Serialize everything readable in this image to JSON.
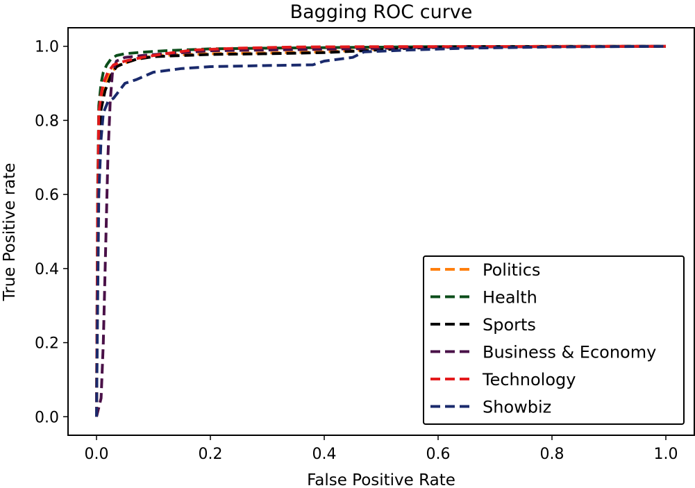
{
  "chart_data": {
    "type": "line",
    "title": "Bagging ROC curve",
    "xlabel": "False Positive Rate",
    "ylabel": "True Positive rate",
    "xlim": [
      -0.05,
      1.05
    ],
    "ylim": [
      -0.05,
      1.05
    ],
    "xticks": [
      0.0,
      0.2,
      0.4,
      0.6,
      0.8,
      1.0
    ],
    "xtick_labels": [
      "0.0",
      "0.2",
      "0.4",
      "0.6",
      "0.8",
      "1.0"
    ],
    "yticks": [
      0.0,
      0.2,
      0.4,
      0.6,
      0.8,
      1.0
    ],
    "ytick_labels": [
      "0.0",
      "0.2",
      "0.4",
      "0.6",
      "0.8",
      "1.0"
    ],
    "legend_position": "lower-right",
    "series": [
      {
        "name": "Politics",
        "color": "#ff7f0e",
        "points": [
          [
            0,
            0
          ],
          [
            0.002,
            0.5
          ],
          [
            0.004,
            0.8
          ],
          [
            0.008,
            0.86
          ],
          [
            0.015,
            0.9
          ],
          [
            0.025,
            0.93
          ],
          [
            0.04,
            0.95
          ],
          [
            0.07,
            0.965
          ],
          [
            0.1,
            0.975
          ],
          [
            0.2,
            0.98
          ],
          [
            0.3,
            0.982
          ],
          [
            0.4,
            0.985
          ],
          [
            0.47,
            0.99
          ],
          [
            0.55,
            0.997
          ],
          [
            0.65,
            0.999
          ],
          [
            0.8,
            1.0
          ],
          [
            1.0,
            1.0
          ]
        ]
      },
      {
        "name": "Health",
        "color": "#0b4d1a",
        "points": [
          [
            0,
            0
          ],
          [
            0.002,
            0.6
          ],
          [
            0.004,
            0.84
          ],
          [
            0.008,
            0.9
          ],
          [
            0.012,
            0.93
          ],
          [
            0.018,
            0.95
          ],
          [
            0.025,
            0.965
          ],
          [
            0.035,
            0.975
          ],
          [
            0.05,
            0.98
          ],
          [
            0.08,
            0.984
          ],
          [
            0.12,
            0.988
          ],
          [
            0.2,
            0.993
          ],
          [
            0.3,
            0.995
          ],
          [
            0.45,
            0.997
          ],
          [
            0.6,
            0.999
          ],
          [
            1.0,
            1.0
          ]
        ]
      },
      {
        "name": "Sports",
        "color": "#000000",
        "points": [
          [
            0,
            0
          ],
          [
            0.002,
            0.4
          ],
          [
            0.004,
            0.75
          ],
          [
            0.008,
            0.83
          ],
          [
            0.015,
            0.88
          ],
          [
            0.025,
            0.92
          ],
          [
            0.035,
            0.945
          ],
          [
            0.05,
            0.955
          ],
          [
            0.07,
            0.965
          ],
          [
            0.1,
            0.972
          ],
          [
            0.15,
            0.975
          ],
          [
            0.2,
            0.978
          ],
          [
            0.3,
            0.98
          ],
          [
            0.4,
            0.983
          ],
          [
            0.47,
            0.988
          ],
          [
            0.55,
            0.995
          ],
          [
            0.65,
            0.999
          ],
          [
            1.0,
            1.0
          ]
        ]
      },
      {
        "name": "Business & Economy",
        "color": "#4a1148",
        "points": [
          [
            0,
            0
          ],
          [
            0.008,
            0.05
          ],
          [
            0.012,
            0.2
          ],
          [
            0.016,
            0.45
          ],
          [
            0.02,
            0.7
          ],
          [
            0.024,
            0.85
          ],
          [
            0.028,
            0.93
          ],
          [
            0.035,
            0.96
          ],
          [
            0.05,
            0.97
          ],
          [
            0.08,
            0.975
          ],
          [
            0.12,
            0.98
          ],
          [
            0.2,
            0.988
          ],
          [
            0.3,
            0.99
          ],
          [
            0.4,
            0.992
          ],
          [
            0.5,
            0.995
          ],
          [
            0.6,
            0.998
          ],
          [
            1.0,
            1.0
          ]
        ]
      },
      {
        "name": "Technology",
        "color": "#e31a1c",
        "points": [
          [
            0,
            0
          ],
          [
            0.002,
            0.55
          ],
          [
            0.004,
            0.82
          ],
          [
            0.008,
            0.87
          ],
          [
            0.012,
            0.9
          ],
          [
            0.02,
            0.93
          ],
          [
            0.03,
            0.95
          ],
          [
            0.05,
            0.96
          ],
          [
            0.08,
            0.97
          ],
          [
            0.12,
            0.98
          ],
          [
            0.17,
            0.99
          ],
          [
            0.25,
            0.995
          ],
          [
            0.35,
            0.998
          ],
          [
            0.5,
            0.999
          ],
          [
            1.0,
            1.0
          ]
        ]
      },
      {
        "name": "Showbiz",
        "color": "#1a2a6c",
        "points": [
          [
            0,
            0
          ],
          [
            0.002,
            0.3
          ],
          [
            0.004,
            0.6
          ],
          [
            0.008,
            0.75
          ],
          [
            0.012,
            0.82
          ],
          [
            0.02,
            0.85
          ],
          [
            0.03,
            0.86
          ],
          [
            0.04,
            0.88
          ],
          [
            0.05,
            0.9
          ],
          [
            0.07,
            0.91
          ],
          [
            0.1,
            0.93
          ],
          [
            0.15,
            0.94
          ],
          [
            0.2,
            0.945
          ],
          [
            0.3,
            0.948
          ],
          [
            0.38,
            0.95
          ],
          [
            0.4,
            0.96
          ],
          [
            0.45,
            0.97
          ],
          [
            0.47,
            0.985
          ],
          [
            0.55,
            0.99
          ],
          [
            0.65,
            0.995
          ],
          [
            0.8,
            0.998
          ],
          [
            1.0,
            1.0
          ]
        ]
      }
    ]
  }
}
